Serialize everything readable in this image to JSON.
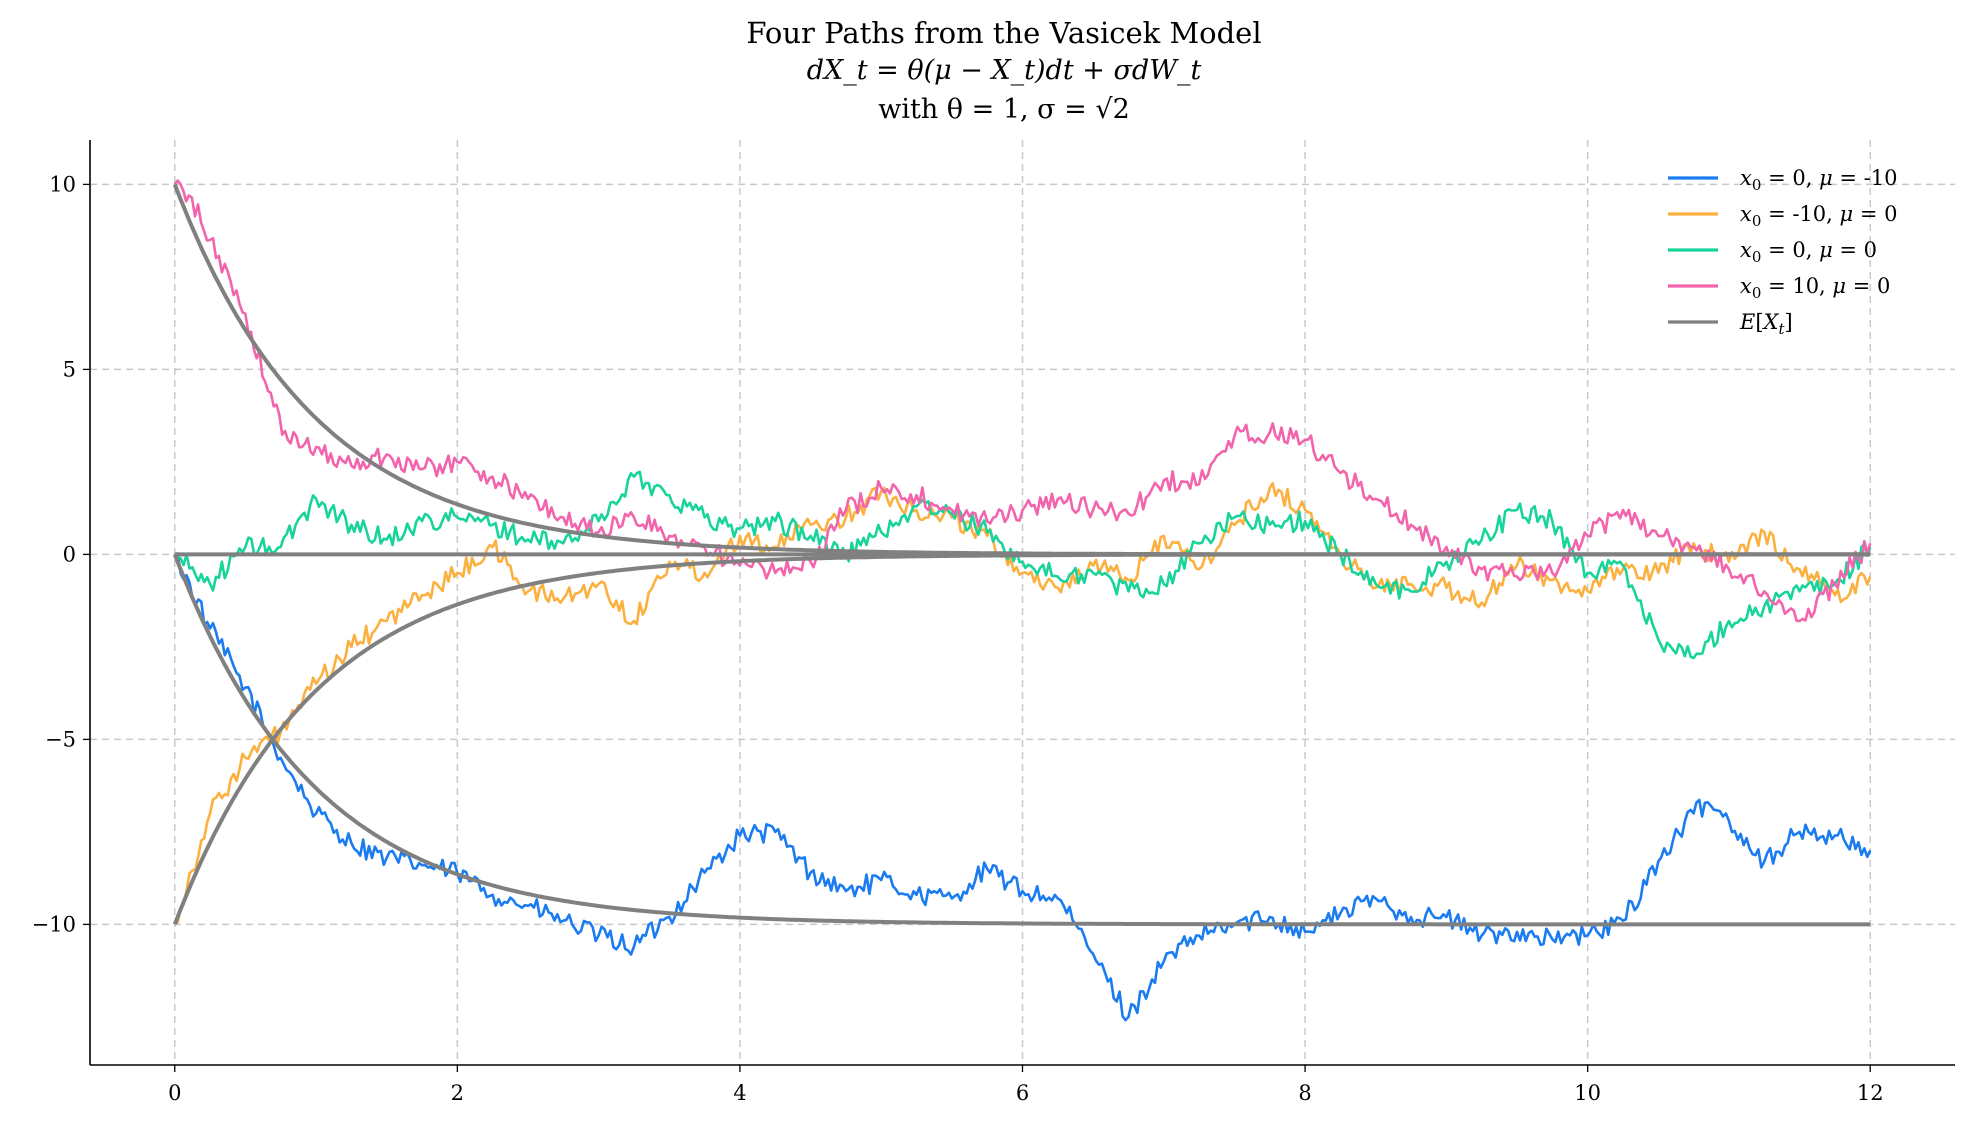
{
  "chart_data": {
    "type": "line",
    "title": "Four Paths from the Vasicek Model",
    "subtitle_equation": "dX_t = θ(μ − X_t)dt + σdW_t",
    "subtitle_params": "with θ = 1, σ = √2",
    "xlabel": "",
    "ylabel": "",
    "xlim": [
      -0.6,
      12.6
    ],
    "ylim": [
      -13.8,
      11.2
    ],
    "xticks": [
      0,
      2,
      4,
      6,
      8,
      10,
      12
    ],
    "yticks": [
      -10,
      -5,
      0,
      5,
      10
    ],
    "xtick_labels": [
      "0",
      "2",
      "4",
      "6",
      "8",
      "10",
      "12"
    ],
    "ytick_labels": [
      "−10",
      "−5",
      "0",
      "5",
      "10"
    ],
    "grid": true,
    "legend_position": "top-right",
    "series": [
      {
        "name": "x₀ = 0, μ = -10",
        "legend_parts": {
          "sym": "x",
          "sub": "0",
          "rest": " = 0, ",
          "mu": "μ",
          "tail": " = -10"
        },
        "color": "#1a7cf0",
        "x": [
          0,
          0.25,
          0.5,
          0.75,
          1.0,
          1.25,
          1.5,
          1.75,
          2.0,
          2.25,
          2.5,
          2.75,
          3.0,
          3.25,
          3.5,
          3.75,
          4.0,
          4.25,
          4.5,
          4.75,
          5.0,
          5.25,
          5.5,
          5.75,
          6.0,
          6.25,
          6.5,
          6.75,
          7.0,
          7.25,
          7.5,
          7.75,
          8.0,
          8.25,
          8.5,
          8.75,
          9.0,
          9.25,
          9.5,
          9.75,
          10.0,
          10.25,
          10.5,
          10.75,
          10.85,
          11.0,
          11.25,
          11.5,
          11.75,
          12.0
        ],
        "y": [
          0,
          -2.0,
          -3.6,
          -5.5,
          -7.0,
          -7.8,
          -8.2,
          -8.4,
          -8.6,
          -9.2,
          -9.5,
          -9.9,
          -10.3,
          -10.6,
          -9.8,
          -8.6,
          -7.6,
          -7.5,
          -8.6,
          -9.1,
          -8.8,
          -9.2,
          -9.3,
          -8.5,
          -9.1,
          -9.3,
          -10.8,
          -12.5,
          -11.0,
          -10.3,
          -10.0,
          -9.8,
          -10.2,
          -9.7,
          -9.3,
          -9.8,
          -9.8,
          -10.3,
          -10.2,
          -10.4,
          -10.3,
          -9.9,
          -8.3,
          -7.0,
          -6.7,
          -7.2,
          -8.3,
          -7.5,
          -7.6,
          -8.0
        ]
      },
      {
        "name": "x₀ = -10, μ = 0",
        "legend_parts": {
          "sym": "x",
          "sub": "0",
          "rest": " = -10, ",
          "mu": "μ",
          "tail": " = 0"
        },
        "color": "#fbb040",
        "x": [
          0,
          0.25,
          0.5,
          0.75,
          1.0,
          1.25,
          1.5,
          1.75,
          2.0,
          2.25,
          2.5,
          2.75,
          3.0,
          3.25,
          3.5,
          3.75,
          4.0,
          4.25,
          4.5,
          4.75,
          5.0,
          5.25,
          5.5,
          5.75,
          6.0,
          6.25,
          6.5,
          6.75,
          7.0,
          7.25,
          7.5,
          7.75,
          8.0,
          8.25,
          8.5,
          8.75,
          9.0,
          9.25,
          9.5,
          9.75,
          10.0,
          10.25,
          10.5,
          10.75,
          11.0,
          11.25,
          11.5,
          11.75,
          12.0
        ],
        "y": [
          -10,
          -7.0,
          -5.5,
          -4.8,
          -3.5,
          -2.5,
          -1.8,
          -1.1,
          -0.5,
          0.2,
          -1.0,
          -1.2,
          -0.8,
          -1.8,
          -0.2,
          -0.5,
          0.5,
          0.2,
          0.8,
          1.0,
          1.7,
          1.2,
          1.0,
          0.5,
          -0.5,
          -0.9,
          -0.3,
          -0.7,
          0.5,
          -0.4,
          0.8,
          1.8,
          1.2,
          0.0,
          -0.9,
          -0.8,
          -0.9,
          -1.3,
          -0.3,
          -0.7,
          -1.0,
          -0.4,
          -0.5,
          0.3,
          -0.2,
          0.6,
          -0.4,
          -1.1,
          -0.6
        ]
      },
      {
        "name": "x₀ = 0, μ = 0",
        "legend_parts": {
          "sym": "x",
          "sub": "0",
          "rest": " = 0, ",
          "mu": "μ",
          "tail": " = 0"
        },
        "color": "#18d49a",
        "x": [
          0,
          0.25,
          0.5,
          0.75,
          1.0,
          1.25,
          1.5,
          1.75,
          2.0,
          2.25,
          2.5,
          2.75,
          3.0,
          3.25,
          3.5,
          3.75,
          4.0,
          4.25,
          4.5,
          4.75,
          5.0,
          5.25,
          5.5,
          5.75,
          6.0,
          6.25,
          6.5,
          6.75,
          7.0,
          7.25,
          7.5,
          7.75,
          8.0,
          8.25,
          8.5,
          8.75,
          9.0,
          9.25,
          9.5,
          9.75,
          10.0,
          10.25,
          10.5,
          10.75,
          11.0,
          11.25,
          11.5,
          11.75,
          12.0
        ],
        "y": [
          0,
          -0.8,
          0.2,
          0.2,
          1.5,
          0.8,
          0.4,
          0.9,
          1.0,
          0.8,
          0.4,
          0.3,
          0.9,
          2.1,
          1.6,
          1.0,
          0.7,
          0.9,
          0.5,
          0.0,
          0.6,
          1.3,
          1.1,
          0.6,
          -0.2,
          -0.6,
          -0.5,
          -1.0,
          -0.8,
          0.3,
          1.0,
          0.8,
          0.9,
          0.0,
          -0.8,
          -1.0,
          -0.2,
          0.4,
          1.2,
          0.9,
          -0.5,
          -0.3,
          -2.3,
          -2.8,
          -1.8,
          -1.4,
          -1.0,
          -0.8,
          0.2
        ]
      },
      {
        "name": "x₀ = 10, μ = 0",
        "legend_parts": {
          "sym": "x",
          "sub": "0",
          "rest": " = 10, ",
          "mu": "μ",
          "tail": " = 0"
        },
        "color": "#f264ac",
        "x": [
          0,
          0.1,
          0.25,
          0.5,
          0.7,
          0.8,
          1.0,
          1.25,
          1.5,
          1.75,
          2.0,
          2.25,
          2.5,
          2.75,
          3.0,
          3.25,
          3.5,
          3.75,
          4.0,
          4.25,
          4.5,
          4.75,
          5.0,
          5.25,
          5.5,
          5.75,
          6.0,
          6.25,
          6.5,
          6.75,
          7.0,
          7.25,
          7.5,
          7.75,
          8.0,
          8.25,
          8.5,
          8.75,
          9.0,
          9.25,
          9.5,
          9.75,
          10.0,
          10.25,
          10.5,
          10.75,
          11.0,
          11.25,
          11.5,
          11.75,
          12.0
        ],
        "y": [
          10,
          9.7,
          8.5,
          6.5,
          4.0,
          3.1,
          2.9,
          2.4,
          2.7,
          2.3,
          2.5,
          2.1,
          1.5,
          1.0,
          0.6,
          1.0,
          0.5,
          0.2,
          -0.3,
          -0.5,
          -0.2,
          1.2,
          1.8,
          1.6,
          1.2,
          0.9,
          1.2,
          1.5,
          1.2,
          1.1,
          2.0,
          1.9,
          3.2,
          3.3,
          3.1,
          2.2,
          1.5,
          0.8,
          0.2,
          -0.4,
          -0.6,
          -0.5,
          0.5,
          1.2,
          0.5,
          0.2,
          -0.4,
          -1.0,
          -1.8,
          -0.8,
          0.3
        ]
      },
      {
        "name": "E[X_t]",
        "legend_parts": {
          "sym": "E",
          "sub": "",
          "rest": "[X",
          "mu": "t",
          "tail": "]"
        },
        "color": "#808080",
        "kind": "expectation",
        "components": [
          {
            "x0": 0,
            "mu": -10
          },
          {
            "x0": -10,
            "mu": 0
          },
          {
            "x0": 0,
            "mu": 0
          },
          {
            "x0": 10,
            "mu": 0
          }
        ],
        "theta": 1,
        "t_end": 12
      }
    ]
  }
}
